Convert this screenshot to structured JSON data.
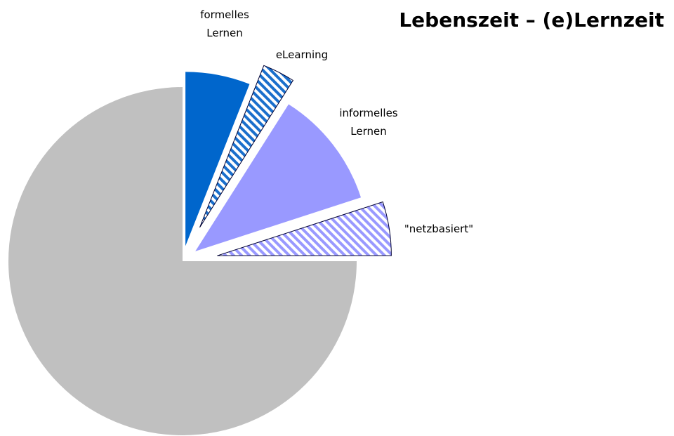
{
  "chart_data": {
    "type": "pie",
    "title": "Lebenszeit – (e)Lernzeit",
    "categories": [
      "formelles Lernen",
      "eLearning",
      "informelles Lernen",
      "\"netzbasiert\"",
      null
    ],
    "values": [
      6,
      3,
      11,
      5,
      75
    ],
    "colors": [
      "#0066cc",
      "#1a6fcc",
      "#9999ff",
      "#9999ff",
      "#c0c0c0"
    ],
    "hatched": [
      false,
      true,
      false,
      true,
      false
    ]
  }
}
